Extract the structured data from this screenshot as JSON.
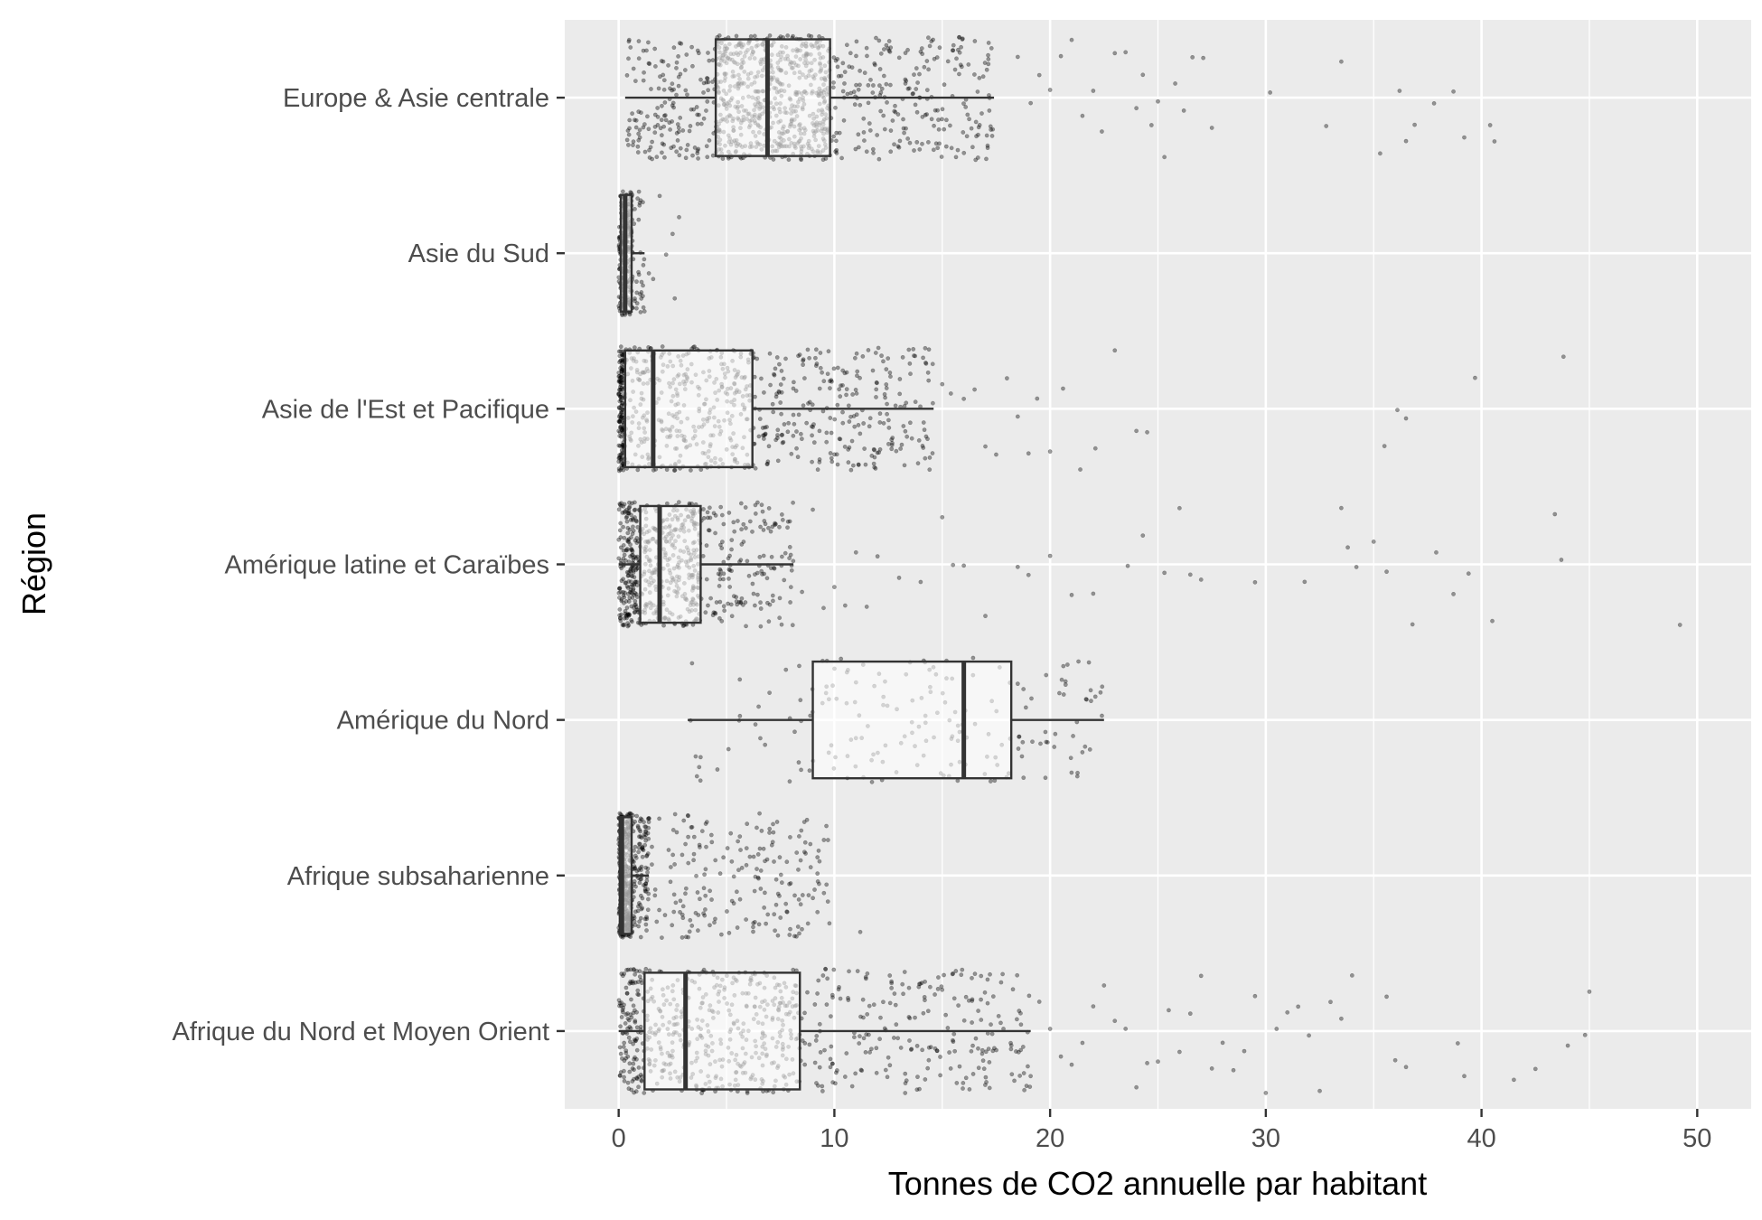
{
  "chart_data": {
    "type": "boxplot",
    "xlabel": "Tonnes de CO2 annuelle par habitant",
    "ylabel": "Région",
    "xlim": [
      -2.5,
      52.5
    ],
    "x_ticks": [
      0,
      10,
      20,
      30,
      40,
      50
    ],
    "grid": true,
    "colors": {
      "panel_background": "#ebebeb",
      "grid_line": "#ffffff",
      "box_fill": "#ffffff",
      "box_outline": "#333333",
      "points": "#000000"
    },
    "categories": [
      "Europe & Asie centrale",
      "Asie du Sud",
      "Asie de l'Est et Pacifique",
      "Amérique latine et Caraïbes",
      "Amérique du Nord",
      "Afrique subsaharienne",
      "Afrique du Nord et Moyen Orient"
    ],
    "boxes": [
      {
        "category": "Europe & Asie centrale",
        "whisker_low": 0.3,
        "q1": 4.5,
        "median": 6.9,
        "q3": 9.8,
        "whisker_high": 17.4
      },
      {
        "category": "Asie du Sud",
        "whisker_low": 0.0,
        "q1": 0.1,
        "median": 0.3,
        "q3": 0.6,
        "whisker_high": 1.2
      },
      {
        "category": "Asie de l'Est et Pacifique",
        "whisker_low": 0.0,
        "q1": 0.3,
        "median": 1.6,
        "q3": 6.2,
        "whisker_high": 14.6
      },
      {
        "category": "Amérique latine et Caraïbes",
        "whisker_low": 0.0,
        "q1": 1.0,
        "median": 1.9,
        "q3": 3.8,
        "whisker_high": 8.1
      },
      {
        "category": "Amérique du Nord",
        "whisker_low": 3.2,
        "q1": 9.0,
        "median": 16.0,
        "q3": 18.2,
        "whisker_high": 22.5
      },
      {
        "category": "Afrique subsaharienne",
        "whisker_low": 0.0,
        "q1": 0.05,
        "median": 0.15,
        "q3": 0.6,
        "whisker_high": 1.4
      },
      {
        "category": "Afrique du Nord et Moyen Orient",
        "whisker_low": 0.0,
        "q1": 1.2,
        "median": 3.1,
        "q3": 8.4,
        "whisker_high": 19.1
      }
    ],
    "points": [
      {
        "category": "Europe & Asie centrale",
        "dense_ranges": [
          [
            0.3,
            4.5,
            160
          ],
          [
            4.5,
            9.8,
            620
          ],
          [
            9.8,
            17.4,
            230
          ]
        ],
        "outliers": [
          18.5,
          19.1,
          19.5,
          20.0,
          20.5,
          21.0,
          21.5,
          22.0,
          22.4,
          23.0,
          23.5,
          24.0,
          24.3,
          24.7,
          25.0,
          25.3,
          25.8,
          26.2,
          26.6,
          27.1,
          27.5,
          30.2,
          32.8,
          33.5,
          35.3,
          36.2,
          36.5,
          36.9,
          37.8,
          38.7,
          39.2,
          40.4,
          40.6
        ]
      },
      {
        "category": "Asie du Sud",
        "dense_ranges": [
          [
            0.0,
            0.6,
            230
          ],
          [
            0.6,
            1.2,
            40
          ]
        ],
        "outliers": [
          1.4,
          1.6,
          1.9,
          2.2,
          2.5,
          2.6,
          2.8
        ]
      },
      {
        "category": "Asie de l'Est et Pacifique",
        "dense_ranges": [
          [
            0.0,
            0.3,
            160
          ],
          [
            0.3,
            6.2,
            340
          ],
          [
            6.2,
            14.6,
            260
          ]
        ],
        "outliers": [
          15.0,
          15.4,
          16.0,
          16.5,
          17.0,
          17.5,
          18.0,
          18.5,
          19.0,
          19.4,
          20.0,
          20.6,
          21.4,
          22.1,
          23.0,
          24.0,
          24.5,
          35.5,
          36.1,
          36.5,
          39.7,
          43.8
        ]
      },
      {
        "category": "Amérique latine et Caraïbes",
        "dense_ranges": [
          [
            0.0,
            1.0,
            200
          ],
          [
            1.0,
            3.8,
            300
          ],
          [
            3.8,
            8.1,
            150
          ]
        ],
        "outliers": [
          8.5,
          9.0,
          9.5,
          10.0,
          10.5,
          11.0,
          11.5,
          12.0,
          13.0,
          14.0,
          15.0,
          15.5,
          16.0,
          17.0,
          18.5,
          19.0,
          20.0,
          21.0,
          22.0,
          23.6,
          24.3,
          25.3,
          26.0,
          26.5,
          27.0,
          29.5,
          31.8,
          33.5,
          33.8,
          34.2,
          35.0,
          35.6,
          36.8,
          37.9,
          38.7,
          39.4,
          40.5,
          43.4,
          43.7,
          49.2
        ]
      },
      {
        "category": "Amérique du Nord",
        "dense_ranges": [
          [
            3.2,
            9.0,
            30
          ],
          [
            9.0,
            18.2,
            110
          ],
          [
            18.2,
            22.5,
            45
          ]
        ],
        "outliers": []
      },
      {
        "category": "Afrique subsaharienne",
        "dense_ranges": [
          [
            0.0,
            0.6,
            400
          ],
          [
            0.6,
            1.4,
            120
          ],
          [
            1.4,
            9.8,
            190
          ]
        ],
        "outliers": [
          11.2
        ]
      },
      {
        "category": "Afrique du Nord et Moyen Orient",
        "dense_ranges": [
          [
            0.0,
            1.2,
            120
          ],
          [
            1.2,
            8.4,
            380
          ],
          [
            8.4,
            19.1,
            230
          ]
        ],
        "outliers": [
          19.5,
          20.0,
          20.5,
          21.0,
          21.5,
          22.0,
          22.5,
          23.0,
          23.5,
          24.0,
          24.5,
          25.0,
          25.5,
          26.0,
          26.5,
          27.0,
          27.5,
          28.0,
          28.5,
          29.0,
          29.5,
          30.0,
          30.5,
          31.0,
          31.5,
          32.0,
          32.5,
          33.0,
          33.5,
          34.0,
          35.6,
          36.0,
          36.5,
          38.9,
          39.2,
          41.5,
          42.5,
          44.0,
          44.8,
          45.0
        ]
      }
    ]
  }
}
